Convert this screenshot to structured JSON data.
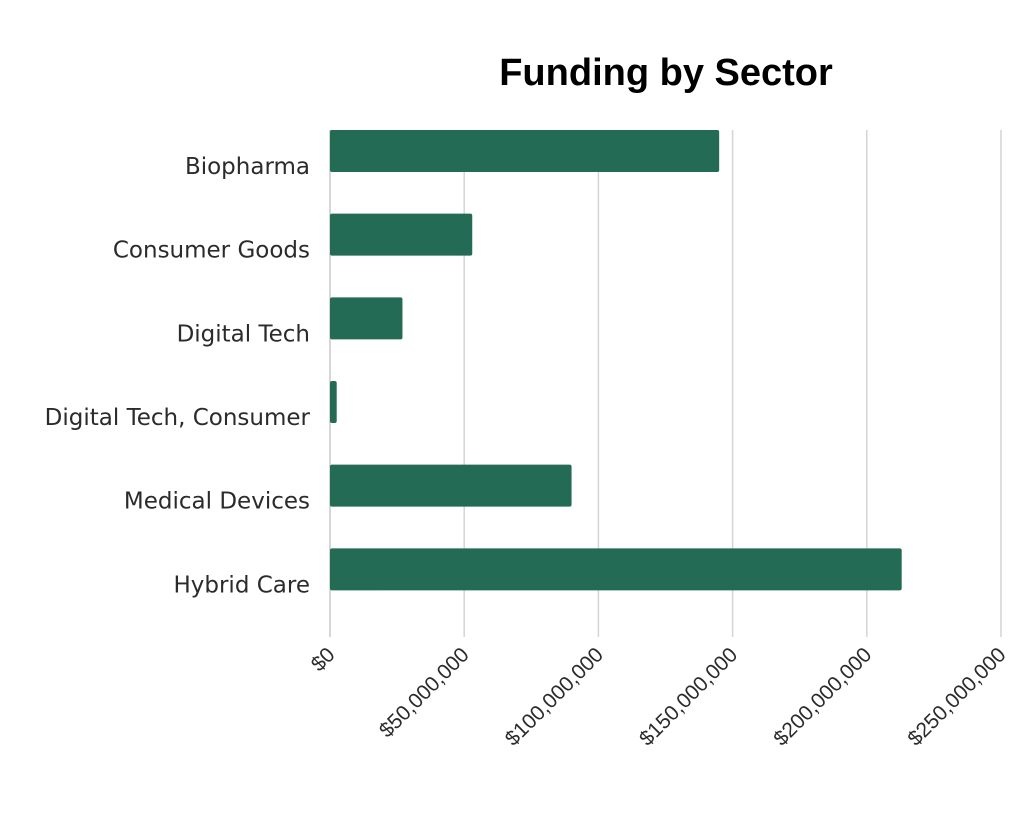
{
  "chart_data": {
    "type": "bar",
    "orientation": "horizontal",
    "title": "Funding by Sector",
    "xlabel": "",
    "ylabel": "",
    "categories": [
      "Biopharma",
      "Consumer Goods",
      "Digital Tech",
      "Digital Tech, Consumer",
      "Medical Devices",
      "Hybrid Care"
    ],
    "values": [
      145000000,
      53000000,
      27000000,
      2500000,
      90000000,
      213000000
    ],
    "xlim": [
      0,
      250000000
    ],
    "x_ticks": [
      0,
      50000000,
      100000000,
      150000000,
      200000000,
      250000000
    ],
    "x_tick_labels": [
      "$0",
      "$50,000,000",
      "$100,000,000",
      "$150,000,000",
      "$200,000,000",
      "$250,000,000"
    ],
    "grid": true,
    "legend": "none",
    "bar_color": "#236b55",
    "grid_color": "#d4d4d4"
  }
}
